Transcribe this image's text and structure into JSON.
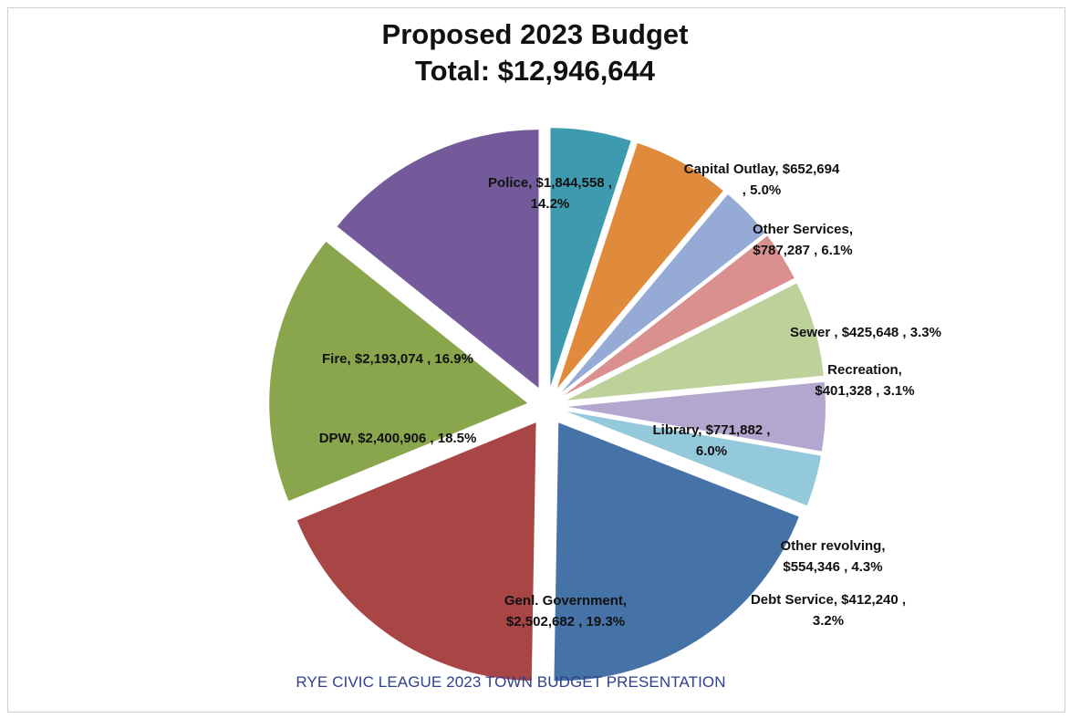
{
  "chart_data": {
    "type": "pie",
    "title": "Proposed 2023 Budget",
    "subtitle": "Total: $12,946,644",
    "caption": "RYE CIVIC LEAGUE 2023 TOWN BUDGET PRESENTATION",
    "exploded": true,
    "start": "top, clockwise",
    "slices": [
      {
        "name": "Capital Outlay",
        "value": 652694,
        "percent": 5.0,
        "color": "#3e9aaf",
        "label_lines": [
          "Capital Outlay,  $652,694",
          ", 5.0%"
        ],
        "label_position": "outside"
      },
      {
        "name": "Other Services",
        "value": 787287,
        "percent": 6.1,
        "color": "#e08a3c",
        "label_lines": [
          "Other Services,",
          "$787,287 , 6.1%"
        ],
        "label_position": "outside"
      },
      {
        "name": "Sewer",
        "value": 425648,
        "percent": 3.3,
        "color": "#96aad6",
        "label_lines": [
          "Sewer ,  $425,648 , 3.3%"
        ],
        "label_position": "outside"
      },
      {
        "name": "Recreation",
        "value": 401328,
        "percent": 3.1,
        "color": "#d9908f",
        "label_lines": [
          "Recreation,",
          "$401,328 , 3.1%"
        ],
        "label_position": "outside"
      },
      {
        "name": "Library",
        "value": 771882,
        "percent": 6.0,
        "color": "#bdd29a",
        "label_lines": [
          "Library,  $771,882 ,",
          "6.0%"
        ],
        "label_position": "inside"
      },
      {
        "name": "Other revolving",
        "value": 554346,
        "percent": 4.3,
        "color": "#b3a7cf",
        "label_lines": [
          "Other revolving,",
          "$554,346 , 4.3%"
        ],
        "label_position": "outside"
      },
      {
        "name": "Debt Service",
        "value": 412240,
        "percent": 3.2,
        "color": "#93c9db",
        "label_lines": [
          "Debt Service,  $412,240 ,",
          "3.2%"
        ],
        "label_position": "outside"
      },
      {
        "name": "Genl. Government",
        "value": 2502682,
        "percent": 19.3,
        "color": "#4572a7",
        "label_lines": [
          "Genl. Government,",
          "$2,502,682 , 19.3%"
        ],
        "label_position": "inside"
      },
      {
        "name": "DPW",
        "value": 2400906,
        "percent": 18.5,
        "color": "#a84545",
        "label_lines": [
          "DPW,  $2,400,906 , 18.5%"
        ],
        "label_position": "inside"
      },
      {
        "name": "Fire",
        "value": 2193074,
        "percent": 16.9,
        "color": "#8aa64c",
        "label_lines": [
          "Fire,  $2,193,074 , 16.9%"
        ],
        "label_position": "inside"
      },
      {
        "name": "Police",
        "value": 1844558,
        "percent": 14.2,
        "color": "#745a9a",
        "label_lines": [
          "Police,  $1,844,558 ,",
          "14.2%"
        ],
        "label_position": "inside"
      }
    ]
  }
}
